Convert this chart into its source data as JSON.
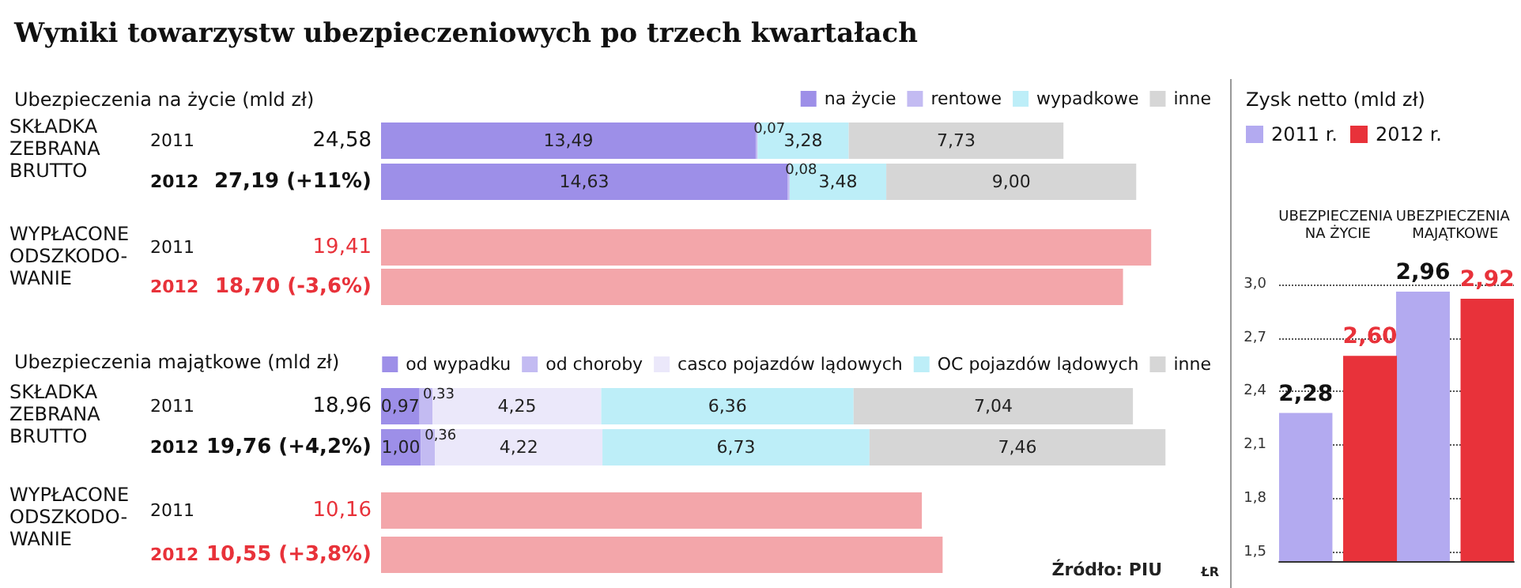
{
  "chart_data": [
    {
      "type": "bar",
      "orientation": "horizontal",
      "stacked": true,
      "title": "Wyniki towarzystw ubezpieczeniowych po trzech kwartałach",
      "subtitle": "Ubezpieczenia na życie (mld zł)",
      "ylabel": "SKŁADKA ZEBRANA BRUTTO",
      "categories": [
        "2011",
        "2012"
      ],
      "series": [
        {
          "name": "na życie",
          "color": "#9d8fe8",
          "values": [
            13.49,
            14.63
          ],
          "value_labels": [
            "13,49",
            "14,63"
          ]
        },
        {
          "name": "rentowe",
          "color": "#c3bbf2",
          "values": [
            0.07,
            0.08
          ],
          "value_labels": [
            "0,07",
            "0,08"
          ]
        },
        {
          "name": "wypadkowe",
          "color": "#bdeef8",
          "values": [
            3.28,
            3.48
          ],
          "value_labels": [
            "3,28",
            "3,48"
          ]
        },
        {
          "name": "inne",
          "color": "#d6d6d6",
          "values": [
            7.73,
            9.0
          ],
          "value_labels": [
            "7,73",
            "9,00"
          ]
        }
      ],
      "totals": [
        "24,58",
        "27,19 (+11%)"
      ],
      "tick_labels": "y",
      "legend": "top right"
    },
    {
      "type": "bar",
      "orientation": "horizontal",
      "ylabel": "WYPŁACONE ODSZKODO-WANIE",
      "categories": [
        "2011",
        "2012"
      ],
      "values": [
        19.41,
        18.7
      ],
      "color": "#f3a6aa",
      "value_labels": [
        "19,41",
        "18,70 (-3,6%)"
      ],
      "tick_labels": "y"
    },
    {
      "type": "bar",
      "orientation": "horizontal",
      "stacked": true,
      "title": "Ubezpieczenia majątkowe (mld zł)",
      "ylabel": "SKŁADKA ZEBRANA BRUTTO",
      "categories": [
        "2011",
        "2012"
      ],
      "series": [
        {
          "name": "od wypadku",
          "color": "#9d8fe8",
          "values": [
            0.97,
            1.0
          ],
          "value_labels": [
            "0,97",
            "1,00"
          ]
        },
        {
          "name": "od choroby",
          "color": "#c3bbf2",
          "values": [
            0.33,
            0.36
          ],
          "value_labels": [
            "0,33",
            "0,36"
          ]
        },
        {
          "name": "casco pojazdów lądowych",
          "color": "#ebe8fa",
          "values": [
            4.25,
            4.22
          ],
          "value_labels": [
            "4,25",
            "4,22"
          ]
        },
        {
          "name": "OC pojazdów lądowych",
          "color": "#bdeef8",
          "values": [
            6.36,
            6.73
          ],
          "value_labels": [
            "6,36",
            "6,73"
          ]
        },
        {
          "name": "inne",
          "color": "#d6d6d6",
          "values": [
            7.04,
            7.46
          ],
          "value_labels": [
            "7,04",
            "7,46"
          ]
        }
      ],
      "totals": [
        "18,96",
        "19,76 (+4,2%)"
      ],
      "tick_labels": "y",
      "legend": "top right"
    },
    {
      "type": "bar",
      "orientation": "horizontal",
      "ylabel": "WYPŁACONE ODSZKODO-WANIE",
      "categories": [
        "2011",
        "2012"
      ],
      "values": [
        10.16,
        10.55
      ],
      "color": "#f3a6aa",
      "value_labels": [
        "10,16",
        "10,55 (+3,8%)"
      ],
      "tick_labels": "y",
      "annotations": [
        "Źródło: PIU",
        "ŁR"
      ]
    },
    {
      "type": "bar",
      "title": "Zysk netto (mld zł)",
      "categories": [
        "UBEZPIECZENIA NA ŻYCIE",
        "UBEZPIECZENIA MAJĄTKOWE"
      ],
      "series": [
        {
          "name": "2011 r.",
          "color": "#b3aaf0",
          "values": [
            2.28,
            2.96
          ],
          "value_labels": [
            "2,28",
            "2,96"
          ]
        },
        {
          "name": "2012 r.",
          "color": "#e8323a",
          "values": [
            2.6,
            2.92
          ],
          "value_labels": [
            "2,60",
            "2,92"
          ]
        }
      ],
      "ylim": [
        1.45,
        3.0
      ],
      "yticks": [
        {
          "value": 1.5,
          "label": "1,5"
        },
        {
          "value": 1.8,
          "label": "1,8"
        },
        {
          "value": 2.1,
          "label": "2,1"
        },
        {
          "value": 2.4,
          "label": "2,4"
        },
        {
          "value": 2.7,
          "label": "2,7"
        },
        {
          "value": 3.0,
          "label": "3,0"
        }
      ],
      "grid": "y",
      "legend": "top left"
    }
  ]
}
